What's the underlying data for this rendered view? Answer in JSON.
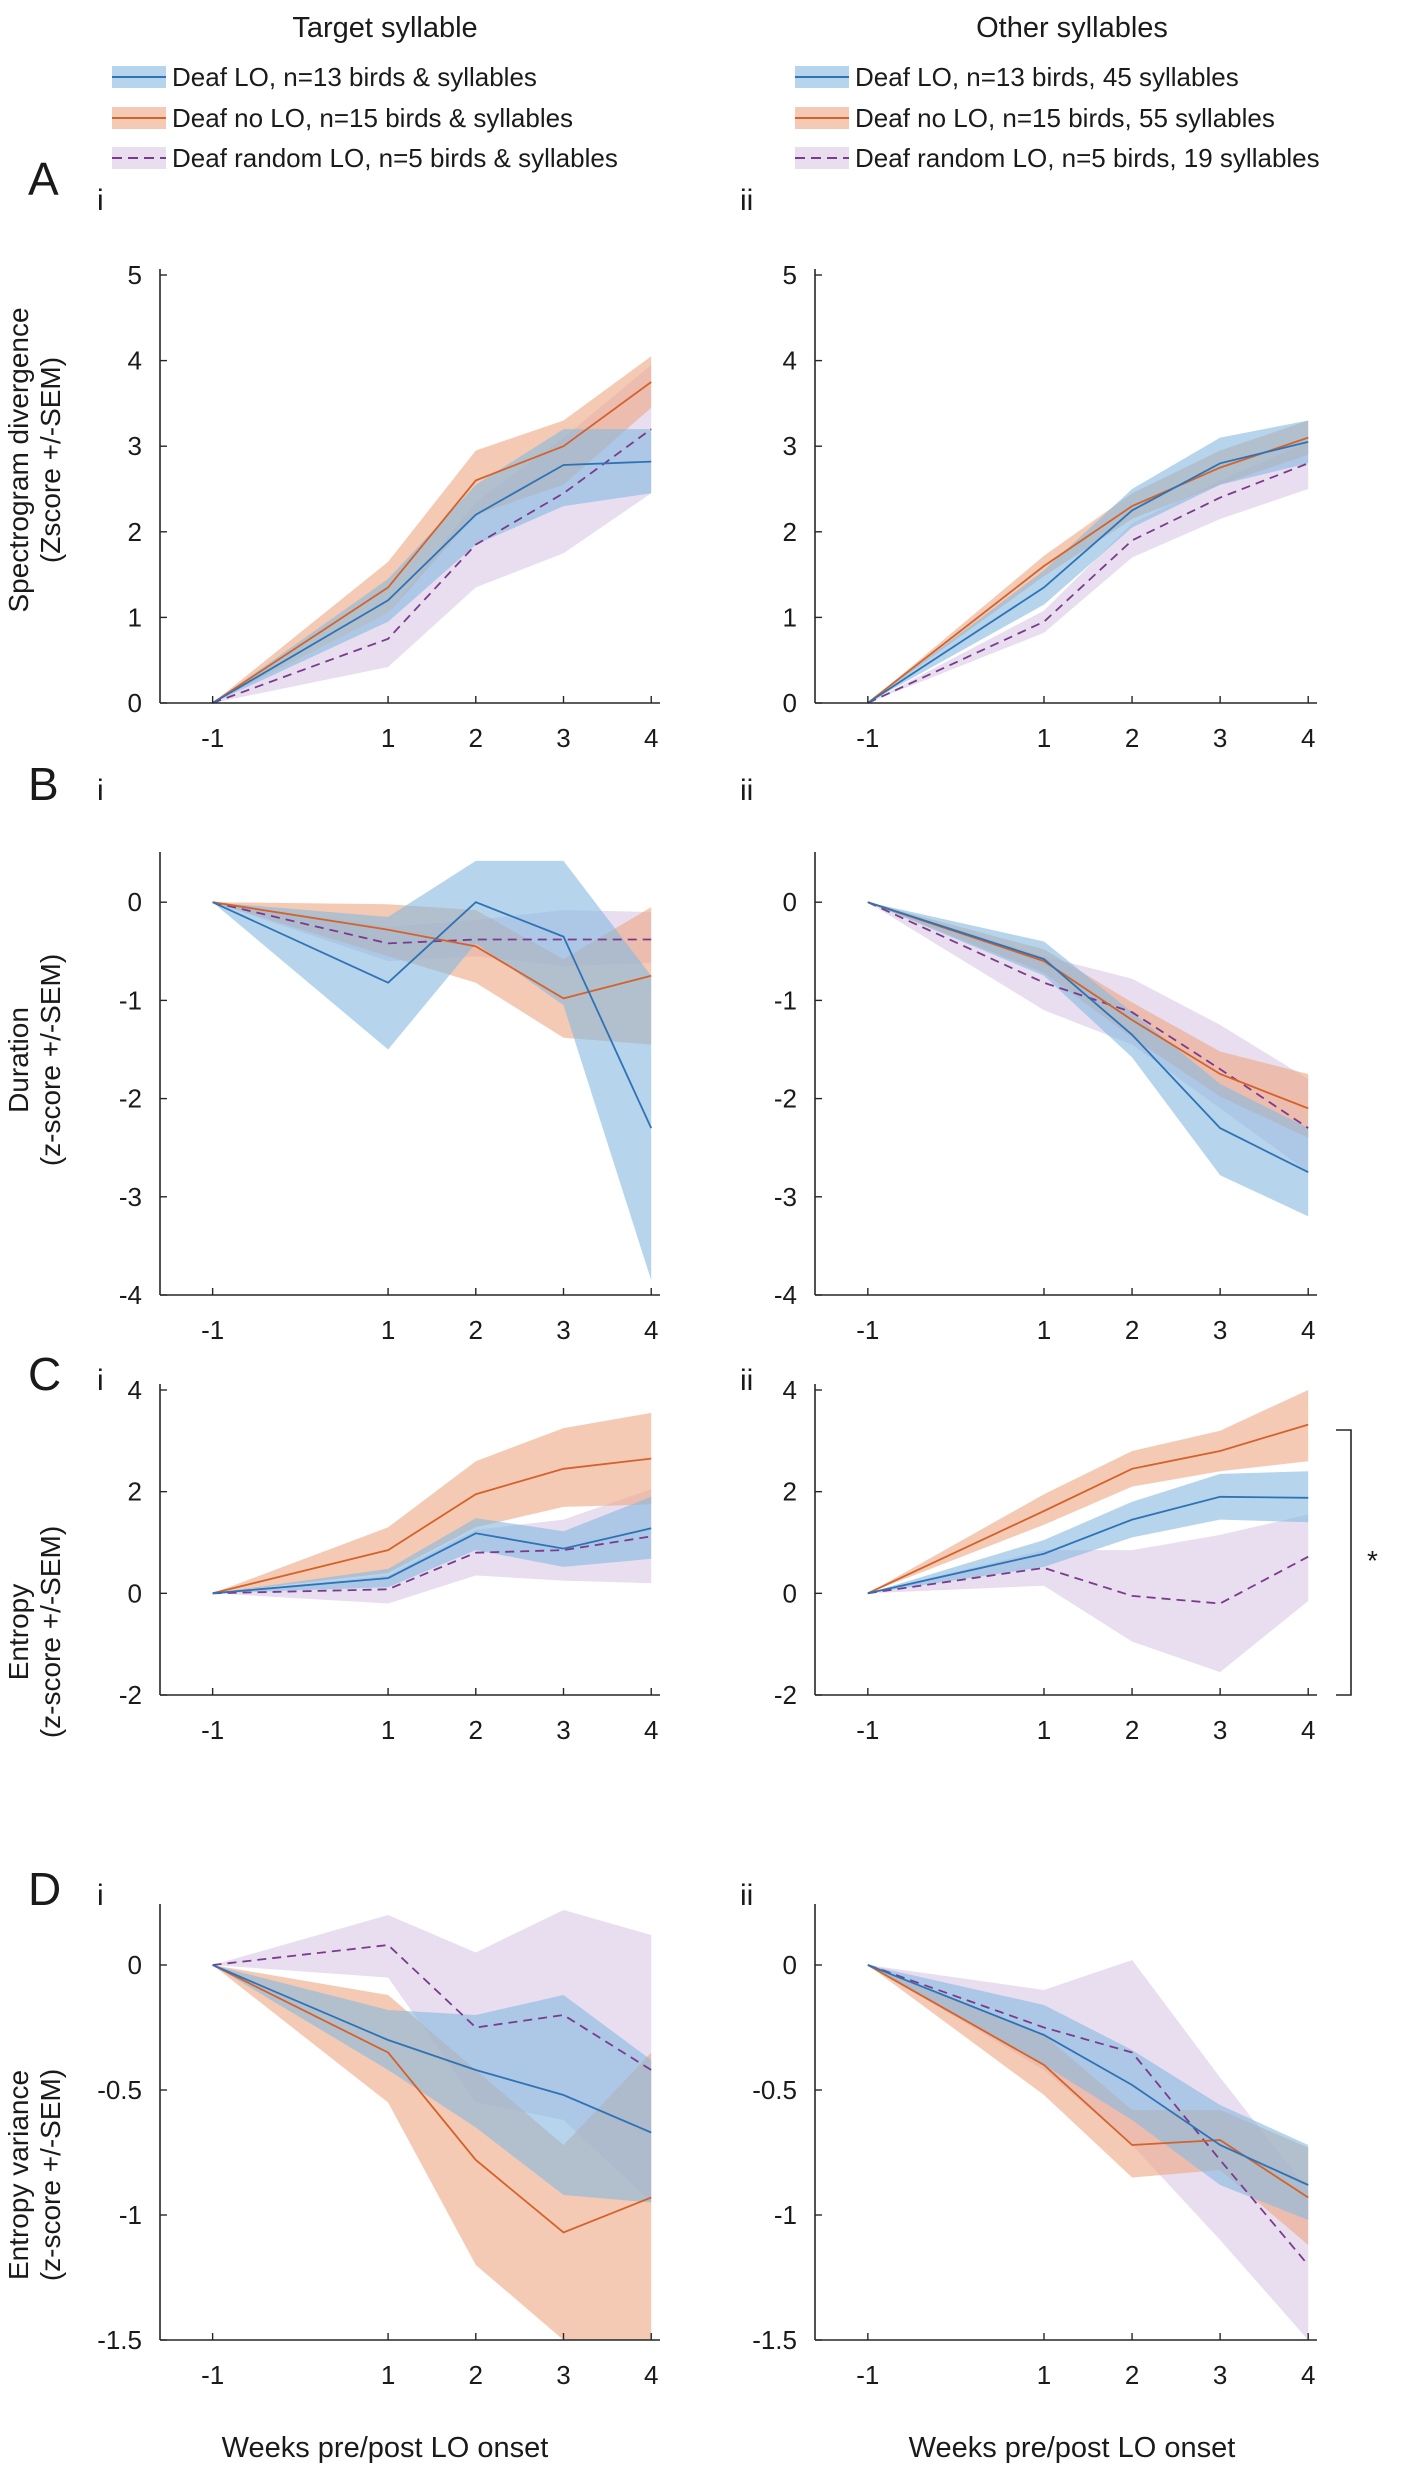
{
  "figure": {
    "column_titles": [
      "Target syllable",
      "Other syllables"
    ],
    "colors": {
      "deaf_lo": "#2e73b5",
      "deaf_lo_fill": "#86b9e0",
      "deaf_no_lo": "#d4622a",
      "deaf_no_lo_fill": "#eea783",
      "deaf_random_lo": "#7b3a8c",
      "deaf_random_lo_fill": "#d9c8e4",
      "axis": "#262626"
    },
    "legends": [
      [
        "Deaf LO, n=13 birds & syllables",
        "Deaf no LO, n=15 birds & syllables",
        "Deaf random LO, n=5 birds & syllables"
      ],
      [
        "Deaf LO, n=13 birds, 45 syllables",
        "Deaf no LO, n=15 birds, 55 syllables",
        "Deaf random LO, n=5 birds, 19 syllables"
      ]
    ],
    "rows": [
      {
        "letter": "A",
        "ylabel_lines": [
          "Spectrogram divergence",
          "(Zscore +/-SEM)"
        ]
      },
      {
        "letter": "B",
        "ylabel_lines": [
          "Duration",
          "(z-score +/-SEM)"
        ]
      },
      {
        "letter": "C",
        "ylabel_lines": [
          "Entropy",
          "(z-score +/-SEM)"
        ]
      },
      {
        "letter": "D",
        "ylabel_lines": [
          "Entropy variance",
          "(z-score +/-SEM)"
        ]
      }
    ],
    "subpanel_labels": [
      "i",
      "ii"
    ],
    "xlabel": "Weeks pre/post LO onset",
    "significance_marker": "*"
  },
  "chart_data": [
    {
      "id": "A-i",
      "type": "line",
      "x": [
        -1,
        1,
        2,
        3,
        4
      ],
      "xticks": [
        -1,
        1,
        2,
        3,
        4
      ],
      "xlim": [
        -1.6,
        4.1
      ],
      "ylim": [
        0,
        5
      ],
      "yticks": [
        0,
        1,
        2,
        3,
        4,
        5
      ],
      "ytick_labels": [
        "0",
        "1",
        "2",
        "3",
        "4",
        "5"
      ],
      "series": [
        {
          "name": "Deaf random LO",
          "mean": [
            0,
            0.75,
            1.85,
            2.45,
            3.2
          ],
          "lower": [
            0,
            0.42,
            1.35,
            1.75,
            2.45
          ],
          "upper": [
            0,
            1.05,
            2.35,
            3.1,
            3.95
          ]
        },
        {
          "name": "Deaf no LO",
          "mean": [
            0,
            1.35,
            2.6,
            3.0,
            3.75
          ],
          "lower": [
            0,
            1.05,
            2.2,
            2.55,
            3.45
          ],
          "upper": [
            0,
            1.65,
            2.95,
            3.3,
            4.05
          ]
        },
        {
          "name": "Deaf LO",
          "mean": [
            0,
            1.2,
            2.2,
            2.78,
            2.82
          ],
          "lower": [
            0,
            0.95,
            1.85,
            2.3,
            2.45
          ],
          "upper": [
            0,
            1.45,
            2.55,
            3.2,
            3.2
          ]
        }
      ]
    },
    {
      "id": "A-ii",
      "type": "line",
      "x": [
        -1,
        1,
        2,
        3,
        4
      ],
      "xticks": [
        -1,
        1,
        2,
        3,
        4
      ],
      "xlim": [
        -1.6,
        4.1
      ],
      "ylim": [
        0,
        5
      ],
      "yticks": [
        0,
        1,
        2,
        3,
        4,
        5
      ],
      "ytick_labels": [
        "0",
        "1",
        "2",
        "3",
        "4",
        "5"
      ],
      "series": [
        {
          "name": "Deaf random LO",
          "mean": [
            0,
            0.95,
            1.9,
            2.4,
            2.8
          ],
          "lower": [
            0,
            0.82,
            1.7,
            2.15,
            2.5
          ],
          "upper": [
            0,
            1.08,
            2.1,
            2.6,
            3.05
          ]
        },
        {
          "name": "Deaf no LO",
          "mean": [
            0,
            1.6,
            2.3,
            2.75,
            3.1
          ],
          "lower": [
            0,
            1.48,
            2.15,
            2.55,
            2.9
          ],
          "upper": [
            0,
            1.72,
            2.45,
            2.95,
            3.3
          ]
        },
        {
          "name": "Deaf LO",
          "mean": [
            0,
            1.35,
            2.25,
            2.8,
            3.05
          ],
          "lower": [
            0,
            1.15,
            2.05,
            2.55,
            2.8
          ],
          "upper": [
            0,
            1.55,
            2.5,
            3.1,
            3.3
          ]
        }
      ]
    },
    {
      "id": "B-i",
      "type": "line",
      "x": [
        -1,
        1,
        2,
        3,
        4
      ],
      "xticks": [
        -1,
        1,
        2,
        3,
        4
      ],
      "xlim": [
        -1.6,
        4.1
      ],
      "ylim": [
        -4,
        0.45
      ],
      "yticks": [
        -4,
        -3,
        -2,
        -1,
        0
      ],
      "ytick_labels": [
        "-4",
        "-3",
        "-2",
        "-1",
        "0"
      ],
      "series": [
        {
          "name": "Deaf random LO",
          "mean": [
            0,
            -0.42,
            -0.38,
            -0.38,
            -0.38
          ],
          "lower": [
            0,
            -0.6,
            -0.55,
            -0.65,
            -0.62
          ],
          "upper": [
            0,
            -0.25,
            -0.18,
            -0.08,
            -0.1
          ]
        },
        {
          "name": "Deaf no LO",
          "mean": [
            0,
            -0.28,
            -0.45,
            -0.98,
            -0.75
          ],
          "lower": [
            0,
            -0.55,
            -0.82,
            -1.38,
            -1.45
          ],
          "upper": [
            0,
            -0.02,
            -0.08,
            -0.58,
            -0.05
          ]
        },
        {
          "name": "Deaf LO",
          "mean": [
            0,
            -0.82,
            0,
            -0.35,
            -2.3
          ],
          "lower": [
            0,
            -1.5,
            -0.42,
            -1.05,
            -3.85
          ],
          "upper": [
            0,
            -0.15,
            0.42,
            0.42,
            -0.75
          ]
        }
      ]
    },
    {
      "id": "B-ii",
      "type": "line",
      "x": [
        -1,
        1,
        2,
        3,
        4
      ],
      "xticks": [
        -1,
        1,
        2,
        3,
        4
      ],
      "xlim": [
        -1.6,
        4.1
      ],
      "ylim": [
        -4,
        0.45
      ],
      "yticks": [
        -4,
        -3,
        -2,
        -1,
        0
      ],
      "ytick_labels": [
        "-4",
        "-3",
        "-2",
        "-1",
        "0"
      ],
      "series": [
        {
          "name": "Deaf random LO",
          "mean": [
            0,
            -0.82,
            -1.12,
            -1.7,
            -2.3
          ],
          "lower": [
            0,
            -1.1,
            -1.45,
            -2.1,
            -2.75
          ],
          "upper": [
            0,
            -0.55,
            -0.78,
            -1.25,
            -1.8
          ]
        },
        {
          "name": "Deaf no LO",
          "mean": [
            0,
            -0.6,
            -1.2,
            -1.75,
            -2.1
          ],
          "lower": [
            0,
            -0.72,
            -1.38,
            -1.98,
            -2.4
          ],
          "upper": [
            0,
            -0.48,
            -1.02,
            -1.52,
            -1.75
          ]
        },
        {
          "name": "Deaf LO",
          "mean": [
            0,
            -0.58,
            -1.35,
            -2.3,
            -2.75
          ],
          "lower": [
            0,
            -0.75,
            -1.58,
            -2.78,
            -3.2
          ],
          "upper": [
            0,
            -0.4,
            -1.12,
            -1.85,
            -2.3
          ]
        }
      ]
    },
    {
      "id": "C-i",
      "type": "line",
      "x": [
        -1,
        1,
        2,
        3,
        4
      ],
      "xticks": [
        -1,
        1,
        2,
        3,
        4
      ],
      "xlim": [
        -1.6,
        4.1
      ],
      "ylim": [
        -2,
        4
      ],
      "yticks": [
        -2,
        0,
        2,
        4
      ],
      "ytick_labels": [
        "-2",
        "0",
        "2",
        "4"
      ],
      "series": [
        {
          "name": "Deaf random LO",
          "mean": [
            0,
            0.08,
            0.8,
            0.85,
            1.12
          ],
          "lower": [
            0,
            -0.2,
            0.35,
            0.25,
            0.2
          ],
          "upper": [
            0,
            0.35,
            1.25,
            1.45,
            2.05
          ]
        },
        {
          "name": "Deaf no LO",
          "mean": [
            0,
            0.85,
            1.95,
            2.45,
            2.65
          ],
          "lower": [
            0,
            0.4,
            1.3,
            1.7,
            1.75
          ],
          "upper": [
            0,
            1.3,
            2.6,
            3.25,
            3.55
          ]
        },
        {
          "name": "Deaf LO",
          "mean": [
            0,
            0.3,
            1.18,
            0.88,
            1.28
          ],
          "lower": [
            0,
            0.12,
            0.85,
            0.52,
            0.68
          ],
          "upper": [
            0,
            0.48,
            1.48,
            1.22,
            1.9
          ]
        }
      ]
    },
    {
      "id": "C-ii",
      "type": "line",
      "x": [
        -1,
        1,
        2,
        3,
        4
      ],
      "xticks": [
        -1,
        1,
        2,
        3,
        4
      ],
      "xlim": [
        -1.6,
        4.1
      ],
      "ylim": [
        -2,
        4
      ],
      "yticks": [
        -2,
        0,
        2,
        4
      ],
      "ytick_labels": [
        "-2",
        "0",
        "2",
        "4"
      ],
      "series": [
        {
          "name": "Deaf random LO",
          "mean": [
            0,
            0.5,
            -0.05,
            -0.2,
            0.72
          ],
          "lower": [
            0,
            0.15,
            -0.95,
            -1.55,
            -0.15
          ],
          "upper": [
            0,
            0.85,
            0.85,
            1.15,
            1.55
          ]
        },
        {
          "name": "Deaf no LO",
          "mean": [
            0,
            1.62,
            2.45,
            2.8,
            3.32
          ],
          "lower": [
            0,
            1.35,
            2.1,
            2.4,
            2.6
          ],
          "upper": [
            0,
            1.95,
            2.8,
            3.2,
            4.0
          ]
        },
        {
          "name": "Deaf LO",
          "mean": [
            0,
            0.78,
            1.45,
            1.9,
            1.88
          ],
          "lower": [
            0,
            0.52,
            1.1,
            1.45,
            1.4
          ],
          "upper": [
            0,
            1.05,
            1.8,
            2.35,
            2.4
          ]
        }
      ],
      "annotation": {
        "text": "*",
        "between": [
          "Deaf no LO",
          "Deaf random LO"
        ],
        "at_x": 4,
        "bracket_y": [
          3.32,
          0.72
        ]
      }
    },
    {
      "id": "D-i",
      "type": "line",
      "x": [
        -1,
        1,
        2,
        3,
        4
      ],
      "xticks": [
        -1,
        1,
        2,
        3,
        4
      ],
      "xlim": [
        -1.6,
        4.1
      ],
      "ylim": [
        -1.5,
        0.22
      ],
      "yticks": [
        -1.5,
        -1,
        -0.5,
        0
      ],
      "ytick_labels": [
        "-1.5",
        "-1",
        "-0.5",
        "0"
      ],
      "series": [
        {
          "name": "Deaf random LO",
          "mean": [
            0,
            0.08,
            -0.25,
            -0.2,
            -0.42
          ],
          "lower": [
            0,
            -0.05,
            -0.55,
            -0.62,
            -0.95
          ],
          "upper": [
            0,
            0.2,
            0.05,
            0.22,
            0.12
          ]
        },
        {
          "name": "Deaf no LO",
          "mean": [
            0,
            -0.35,
            -0.78,
            -1.07,
            -0.93
          ],
          "lower": [
            0,
            -0.55,
            -1.2,
            -1.5,
            -1.5
          ],
          "upper": [
            0,
            -0.12,
            -0.42,
            -0.72,
            -0.35
          ]
        },
        {
          "name": "Deaf LO",
          "mean": [
            0,
            -0.3,
            -0.42,
            -0.52,
            -0.67
          ],
          "lower": [
            0,
            -0.42,
            -0.65,
            -0.92,
            -0.95
          ],
          "upper": [
            0,
            -0.18,
            -0.2,
            -0.12,
            -0.38
          ]
        }
      ]
    },
    {
      "id": "D-ii",
      "type": "line",
      "x": [
        -1,
        1,
        2,
        3,
        4
      ],
      "xticks": [
        -1,
        1,
        2,
        3,
        4
      ],
      "xlim": [
        -1.6,
        4.1
      ],
      "ylim": [
        -1.5,
        0.22
      ],
      "yticks": [
        -1.5,
        -1,
        -0.5,
        0
      ],
      "ytick_labels": [
        "-1.5",
        "-1",
        "-0.5",
        "0"
      ],
      "series": [
        {
          "name": "Deaf random LO",
          "mean": [
            0,
            -0.25,
            -0.35,
            -0.78,
            -1.2
          ],
          "lower": [
            0,
            -0.42,
            -0.72,
            -1.1,
            -1.5
          ],
          "upper": [
            0,
            -0.1,
            0.02,
            -0.45,
            -0.9
          ]
        },
        {
          "name": "Deaf no LO",
          "mean": [
            0,
            -0.4,
            -0.72,
            -0.7,
            -0.93
          ],
          "lower": [
            0,
            -0.52,
            -0.85,
            -0.82,
            -1.12
          ],
          "upper": [
            0,
            -0.28,
            -0.58,
            -0.58,
            -0.73
          ]
        },
        {
          "name": "Deaf LO",
          "mean": [
            0,
            -0.28,
            -0.48,
            -0.72,
            -0.88
          ],
          "lower": [
            0,
            -0.4,
            -0.62,
            -0.88,
            -1.02
          ],
          "upper": [
            0,
            -0.16,
            -0.34,
            -0.56,
            -0.72
          ]
        }
      ]
    }
  ]
}
